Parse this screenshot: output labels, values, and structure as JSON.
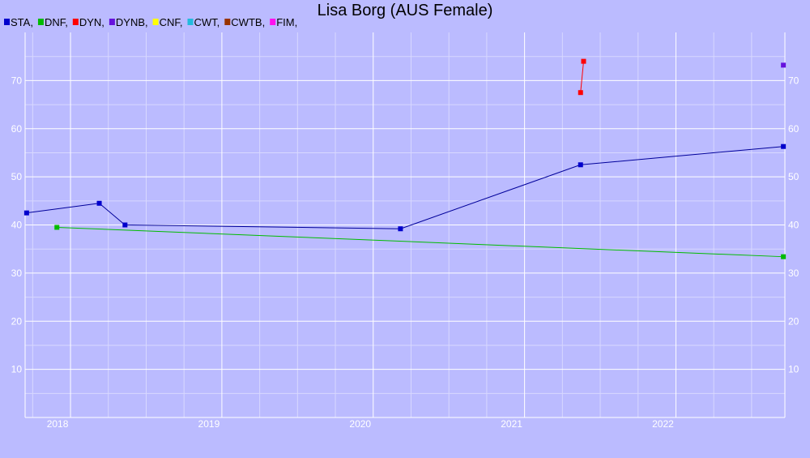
{
  "chart_data": {
    "type": "line",
    "title": "Lisa Borg (AUS Female)",
    "xlabel": "",
    "ylabel": "",
    "xlim": [
      2017.7,
      2022.72
    ],
    "ylim": [
      0,
      80
    ],
    "x_ticks": [
      "2018",
      "2019",
      "2020",
      "2021",
      "2022"
    ],
    "y_ticks": [
      10,
      20,
      30,
      40,
      50,
      60,
      70
    ],
    "grid": true,
    "legend_position": "top-left",
    "legend": [
      {
        "label": "STA,",
        "color": "#0000cc"
      },
      {
        "label": "DNF,",
        "color": "#00bb00"
      },
      {
        "label": "DYN,",
        "color": "#ff0000"
      },
      {
        "label": "DYNB,",
        "color": "#6611dd"
      },
      {
        "label": "CNF,",
        "color": "#ffff00"
      },
      {
        "label": "CWT,",
        "color": "#22bbdd"
      },
      {
        "label": "CWTB,",
        "color": "#993300"
      },
      {
        "label": "FIM,",
        "color": "#ff11ee"
      }
    ],
    "series": [
      {
        "color": "#0000cc",
        "line_color": "#00009a",
        "x": [
          2017.71,
          2018.19,
          2018.36,
          2020.18,
          2021.37,
          2022.71
        ],
        "y": [
          42.5,
          44.5,
          40.0,
          39.2,
          52.5,
          56.3
        ]
      },
      {
        "color": "#00bb00",
        "line_color": "#00bb00",
        "x": [
          2017.91,
          2022.71
        ],
        "y": [
          39.5,
          33.4
        ]
      },
      {
        "color": "#ff0000",
        "line_color": "#ff0000",
        "x": [
          2021.37,
          2021.39
        ],
        "y": [
          67.5,
          74.0
        ]
      },
      {
        "color": "#6611dd",
        "line_color": "#6611dd",
        "x": [
          2022.71
        ],
        "y": [
          73.2
        ]
      }
    ]
  }
}
